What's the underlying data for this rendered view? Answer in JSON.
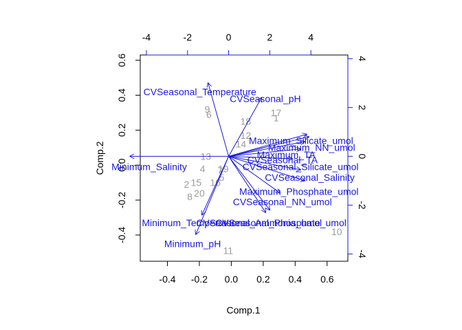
{
  "chart_data": {
    "type": "scatter",
    "subtype": "biplot",
    "xlabel": "Comp.1",
    "ylabel": "Comp.2",
    "primary_axes": {
      "xlim": [
        -0.57,
        0.73
      ],
      "ylim": [
        -0.55,
        0.63
      ],
      "x_ticks": [
        -0.4,
        -0.2,
        0.0,
        0.2,
        0.4,
        0.6
      ],
      "x_tick_labels": [
        "-0.4",
        "-0.2",
        "0.0",
        "0.2",
        "0.4",
        "0.6"
      ],
      "y_ticks": [
        -0.4,
        -0.2,
        0.0,
        0.2,
        0.4,
        0.6
      ],
      "y_tick_labels": [
        "-0.4",
        "-0.2",
        "0.0",
        "0.2",
        "0.4",
        "0.6"
      ]
    },
    "secondary_axes": {
      "color": "#1a1adb",
      "xlim": [
        -4.3,
        5.8
      ],
      "ylim": [
        -4.3,
        4.15
      ],
      "x_ticks": [
        -4,
        -2,
        0,
        2,
        4
      ],
      "x_tick_labels": [
        "-4",
        "-2",
        "0",
        "2",
        "4"
      ],
      "y_ticks": [
        -4,
        -2,
        0,
        2,
        4
      ],
      "y_tick_labels": [
        "-4",
        "-2",
        "0",
        "2",
        "4"
      ]
    },
    "observations": [
      {
        "label": "1",
        "x": 0.28,
        "y": 0.27
      },
      {
        "label": "2",
        "x": -0.28,
        "y": -0.11
      },
      {
        "label": "4",
        "x": -0.18,
        "y": -0.02
      },
      {
        "label": "5",
        "x": -0.06,
        "y": -0.07
      },
      {
        "label": "6",
        "x": -0.14,
        "y": 0.29
      },
      {
        "label": "7",
        "x": -0.07,
        "y": -0.03
      },
      {
        "label": "8",
        "x": -0.26,
        "y": -0.18
      },
      {
        "label": "9",
        "x": -0.15,
        "y": 0.32
      },
      {
        "label": "10",
        "x": 0.66,
        "y": -0.38
      },
      {
        "label": "11",
        "x": -0.02,
        "y": -0.49
      },
      {
        "label": "12",
        "x": 0.09,
        "y": 0.17
      },
      {
        "label": "13",
        "x": -0.16,
        "y": 0.05
      },
      {
        "label": "14",
        "x": 0.06,
        "y": 0.12
      },
      {
        "label": "15",
        "x": -0.22,
        "y": -0.1
      },
      {
        "label": "16",
        "x": -0.1,
        "y": -0.1
      },
      {
        "label": "17",
        "x": 0.28,
        "y": 0.3
      },
      {
        "label": "18",
        "x": 0.09,
        "y": 0.25
      },
      {
        "label": "19",
        "x": -0.05,
        "y": -0.02
      },
      {
        "label": "20",
        "x": -0.2,
        "y": -0.16
      }
    ],
    "loadings": [
      {
        "name": "CVSeasonal_Temperature",
        "x": -1.0,
        "y": 3.0,
        "label_x": -0.55,
        "label_y": 0.42,
        "anchor": "start"
      },
      {
        "name": "CVSeasonal_pH",
        "x": 1.6,
        "y": 2.4,
        "label_x": -0.01,
        "label_y": 0.38,
        "anchor": "start"
      },
      {
        "name": "Maximum_Silicate_umol",
        "x": 3.8,
        "y": 0.9,
        "label_x": 0.11,
        "label_y": 0.14,
        "anchor": "start"
      },
      {
        "name": "Maximum_NN_umol",
        "x": 3.9,
        "y": 0.8,
        "label_x": 0.23,
        "label_y": 0.1,
        "anchor": "start"
      },
      {
        "name": "Maximum_TA",
        "x": 3.7,
        "y": 0.6,
        "label_x": 0.16,
        "label_y": 0.06,
        "anchor": "start"
      },
      {
        "name": "CVSeasonal_TA",
        "x": 3.5,
        "y": 0.3,
        "label_x": 0.1,
        "label_y": 0.03,
        "anchor": "start"
      },
      {
        "name": "Minimum_Salinity",
        "x": -4.8,
        "y": 0.0,
        "label_x": -0.75,
        "label_y": -0.01,
        "anchor": "start"
      },
      {
        "name": "CVSeasonal_Silicate_umol",
        "x": 3.1,
        "y": -0.1,
        "label_x": 0.07,
        "label_y": -0.01,
        "anchor": "start"
      },
      {
        "name": "CVSeasonal_Salinity",
        "x": 3.5,
        "y": -0.55,
        "label_x": 0.21,
        "label_y": -0.07,
        "anchor": "start"
      },
      {
        "name": "Maximum_Phosphate_umol",
        "x": 3.7,
        "y": -1.0,
        "label_x": 0.05,
        "label_y": -0.15,
        "anchor": "start"
      },
      {
        "name": "CVSeasonal_NN_umol",
        "x": 2.5,
        "y": -1.5,
        "label_x": 0.01,
        "label_y": -0.21,
        "anchor": "start"
      },
      {
        "name": "Minimum_Temperature",
        "x": -1.3,
        "y": -2.4,
        "label_x": -0.56,
        "label_y": -0.33,
        "anchor": "start"
      },
      {
        "name": "CVSeasonal_Ammonia_umol",
        "x": 1.8,
        "y": -2.3,
        "label_x": -0.22,
        "label_y": -0.33,
        "anchor": "start"
      },
      {
        "name": "CVSeasonal_Phosphate_umol",
        "x": 2.0,
        "y": -2.2,
        "label_x": -0.1,
        "label_y": -0.33,
        "anchor": "start"
      },
      {
        "name": "Minimum_pH",
        "x": -1.6,
        "y": -3.2,
        "label_x": -0.42,
        "label_y": -0.45,
        "anchor": "start"
      }
    ]
  }
}
